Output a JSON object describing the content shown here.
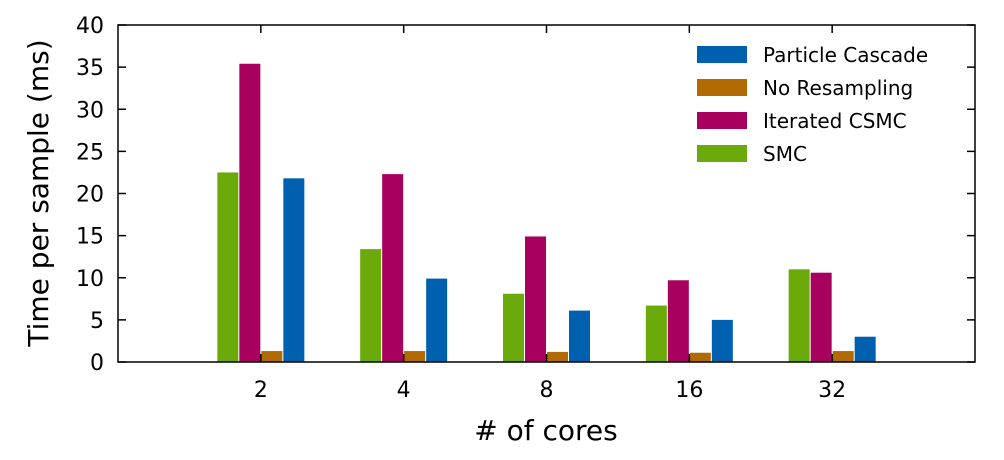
{
  "chart_data": {
    "type": "bar",
    "title": "",
    "xlabel": "# of cores",
    "ylabel": "Time per sample (ms)",
    "categories": [
      "2",
      "4",
      "8",
      "16",
      "32"
    ],
    "ylim": [
      0,
      40
    ],
    "yticks": [
      "0",
      "5",
      "10",
      "15",
      "20",
      "25",
      "30",
      "35",
      "40"
    ],
    "grid": false,
    "legend_position": "top-right",
    "series": [
      {
        "name": "SMC",
        "color": "#6aaa0a",
        "values": [
          22.5,
          13.4,
          8.1,
          6.7,
          11.0
        ]
      },
      {
        "name": "Iterated CSMC",
        "color": "#a8005f",
        "values": [
          35.4,
          22.3,
          14.9,
          9.7,
          10.6
        ]
      },
      {
        "name": "No Resampling",
        "color": "#b06a00",
        "values": [
          1.3,
          1.3,
          1.2,
          1.1,
          1.3
        ]
      },
      {
        "name": "Particle Cascade",
        "color": "#0060b0",
        "values": [
          21.8,
          9.9,
          6.1,
          5.0,
          3.0
        ]
      }
    ],
    "legend_order": [
      "Particle Cascade",
      "No Resampling",
      "Iterated CSMC",
      "SMC"
    ]
  }
}
